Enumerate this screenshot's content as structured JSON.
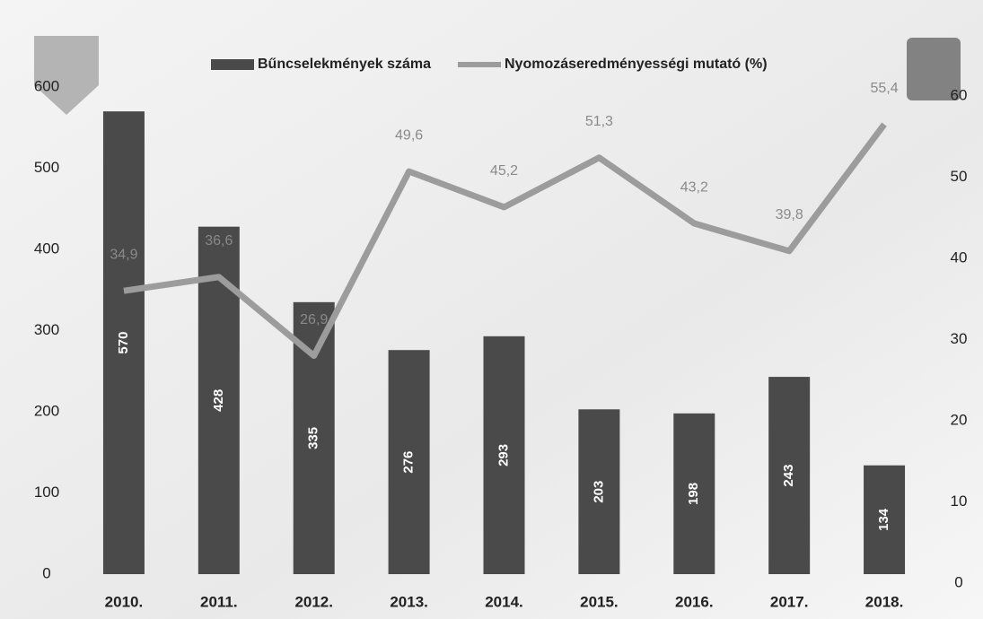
{
  "chart_data": {
    "type": "bar-line",
    "categories": [
      "2010.",
      "2011.",
      "2012.",
      "2013.",
      "2014.",
      "2015.",
      "2016.",
      "2017.",
      "2018."
    ],
    "series": [
      {
        "name": "Bűncselekmények száma",
        "type": "bar",
        "color": "#4a4a4a",
        "values": [
          570,
          428,
          335,
          276,
          293,
          203,
          198,
          243,
          134
        ]
      },
      {
        "name": "Nyomozáseredményességi mutató (%)",
        "type": "line",
        "axis": "y2",
        "color": "#9c9c9c",
        "values": [
          34.9,
          36.6,
          26.9,
          49.6,
          45.2,
          51.3,
          43.2,
          39.8,
          55.4
        ],
        "value_labels": [
          "34,9",
          "36,6",
          "26,9",
          "49,6",
          "45,2",
          "51,3",
          "43,2",
          "39,8",
          "55,4"
        ]
      }
    ],
    "ylim": [
      0,
      600
    ],
    "yticks": [
      0,
      100,
      200,
      300,
      400,
      500,
      600
    ],
    "y2lim": [
      0,
      60
    ],
    "y2ticks": [
      0,
      10,
      20,
      30,
      40,
      50,
      60
    ],
    "legend": "top"
  }
}
